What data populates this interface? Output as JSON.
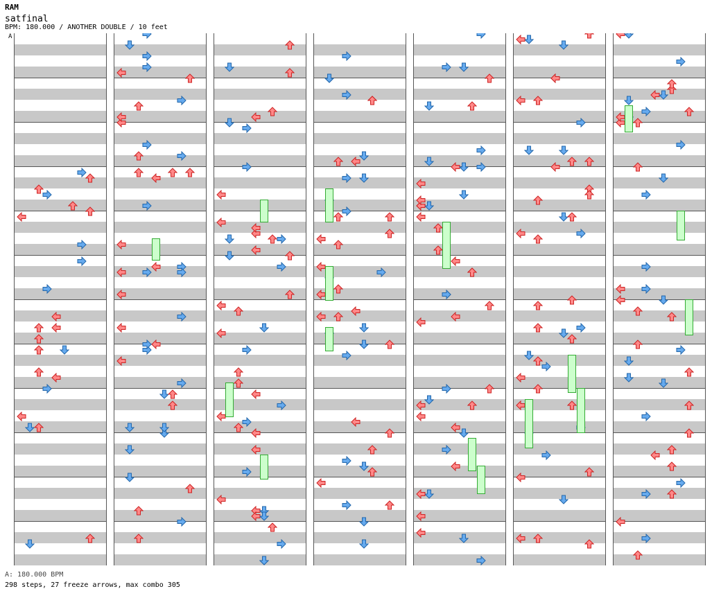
{
  "header": {
    "artist": "RAM",
    "title": "satfinal",
    "info": "BPM: 180.000 / ANOTHER DOUBLE / 10 feet",
    "marker": "A"
  },
  "footer": {
    "bpm_line": "A: 180.000 BPM",
    "stats": "298 steps, 27 freeze arrows, max combo 305"
  },
  "colors": {
    "red_arrow": "#ff8888",
    "red_arrow_stroke": "#cc2222",
    "blue_arrow": "#66aaee",
    "blue_arrow_stroke": "#2266aa",
    "freeze_fill": "#ccffcc",
    "freeze_stroke": "#33aa33"
  }
}
